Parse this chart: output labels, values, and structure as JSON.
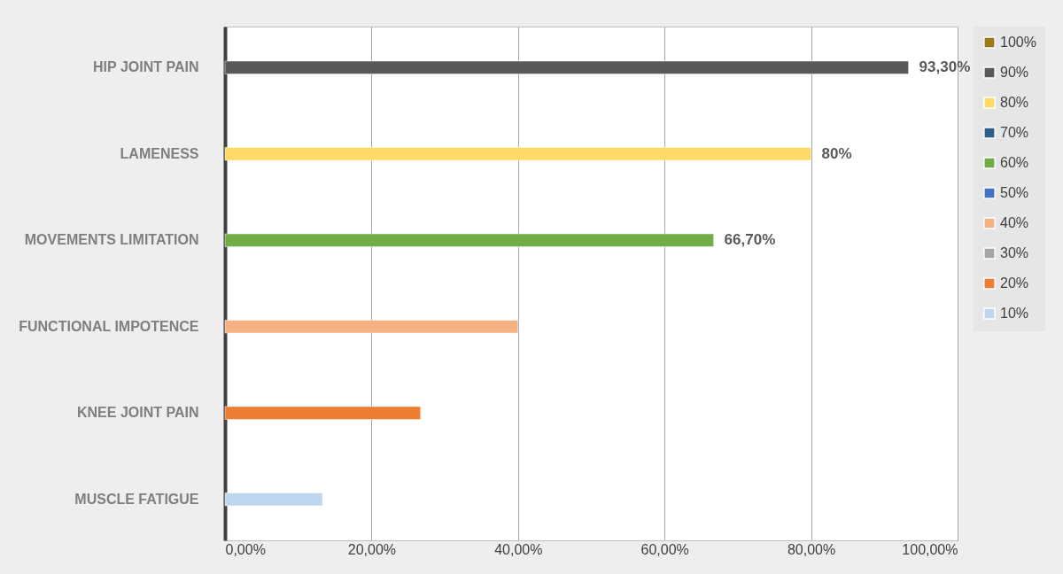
{
  "chart_data": {
    "type": "bar",
    "orientation": "horizontal",
    "categories": [
      "HIP JOINT PAIN",
      "LAMENESS",
      "MOVEMENTS LIMITATION",
      "FUNCTIONAL IMPOTENCE",
      "KNEE JOINT PAIN",
      "MUSCLE FATIGUE"
    ],
    "series": [
      {
        "name": "100%",
        "color": "#9c7a1c",
        "values": [
          null,
          null,
          null,
          null,
          null,
          null
        ]
      },
      {
        "name": "90%",
        "color": "#595959",
        "values": [
          93.3,
          null,
          null,
          null,
          null,
          null
        ],
        "value_labels": [
          "93,30%",
          null,
          null,
          null,
          null,
          null
        ]
      },
      {
        "name": "80%",
        "color": "#ffd966",
        "values": [
          null,
          80,
          null,
          null,
          null,
          null
        ],
        "value_labels": [
          null,
          "80%",
          null,
          null,
          null,
          null
        ]
      },
      {
        "name": "70%",
        "color": "#2e5f8a",
        "values": [
          null,
          null,
          null,
          null,
          null,
          null
        ]
      },
      {
        "name": "60%",
        "color": "#70ad47",
        "values": [
          null,
          null,
          66.7,
          null,
          null,
          null
        ],
        "value_labels": [
          null,
          null,
          "66,70%",
          null,
          null,
          null
        ]
      },
      {
        "name": "50%",
        "color": "#4472c4",
        "values": [
          null,
          null,
          null,
          null,
          null,
          null
        ]
      },
      {
        "name": "40%",
        "color": "#f4b183",
        "values": [
          null,
          null,
          null,
          40,
          null,
          null
        ]
      },
      {
        "name": "30%",
        "color": "#a5a5a5",
        "values": [
          null,
          null,
          null,
          null,
          null,
          null
        ]
      },
      {
        "name": "20%",
        "color": "#ed7d31",
        "values": [
          null,
          null,
          null,
          null,
          26.7,
          null
        ]
      },
      {
        "name": "10%",
        "color": "#bdd7ee",
        "values": [
          null,
          null,
          null,
          null,
          null,
          13.3
        ]
      }
    ],
    "xlim": [
      0,
      100
    ],
    "xticks": [
      {
        "value": 0,
        "label": "0,00%"
      },
      {
        "value": 20,
        "label": "20,00%"
      },
      {
        "value": 40,
        "label": "40,00%"
      },
      {
        "value": 60,
        "label": "60,00%"
      },
      {
        "value": 80,
        "label": "80,00%"
      },
      {
        "value": 100,
        "label": "100,00%"
      }
    ],
    "grid": "x",
    "legend": "right"
  }
}
